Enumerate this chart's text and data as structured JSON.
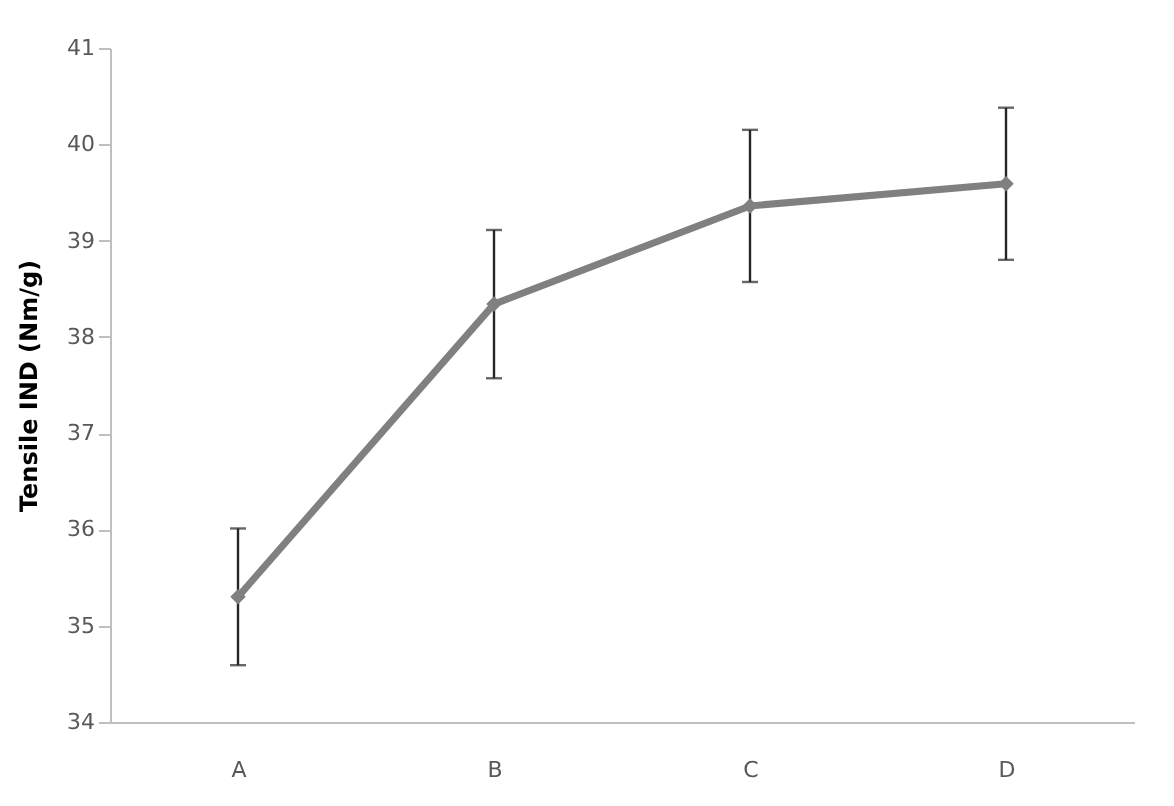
{
  "chart_data": {
    "type": "line",
    "ylabel": "Tensile IND (Nm/g)",
    "categories": [
      "A",
      "B",
      "C",
      "D"
    ],
    "series": [
      {
        "color": "#808080",
        "values": [
          35.3,
          38.34,
          39.36,
          39.59
        ],
        "errors": [
          0.71,
          0.77,
          0.79,
          0.79
        ]
      }
    ],
    "ylim": [
      34,
      41
    ],
    "yticks": [
      34,
      35,
      36,
      37,
      38,
      39,
      40,
      41
    ],
    "marker": "diamond"
  }
}
